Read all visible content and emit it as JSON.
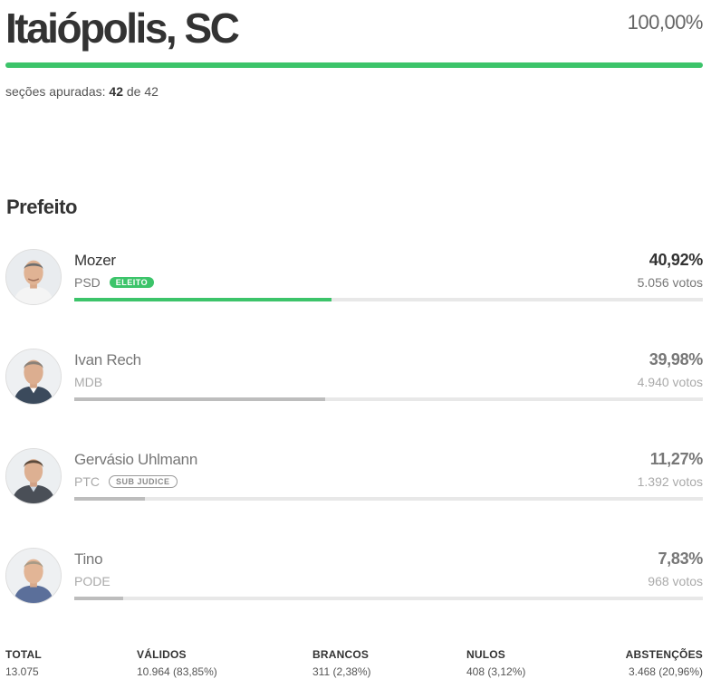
{
  "header": {
    "city": "Itaiópolis, SC",
    "percent_counted": "100,00%",
    "progress_fraction": 1.0
  },
  "sections": {
    "label": "seções apuradas:",
    "counted": "42",
    "separator": "de",
    "total": "42"
  },
  "office": {
    "title": "Prefeito"
  },
  "candidates": [
    {
      "name": "Mozer",
      "party": "PSD",
      "badge": "ELEITO",
      "percent": "40,92%",
      "votes": "5.056 votos",
      "share": 0.4092
    },
    {
      "name": "Ivan Rech",
      "party": "MDB",
      "badge": "",
      "percent": "39,98%",
      "votes": "4.940 votos",
      "share": 0.3998
    },
    {
      "name": "Gervásio Uhlmann",
      "party": "PTC",
      "badge": "SUB JUDICE",
      "percent": "11,27%",
      "votes": "1.392 votos",
      "share": 0.1127
    },
    {
      "name": "Tino",
      "party": "PODE",
      "badge": "",
      "percent": "7,83%",
      "votes": "968 votos",
      "share": 0.0783
    }
  ],
  "summary": {
    "total": {
      "label": "TOTAL",
      "value": "13.075"
    },
    "validos": {
      "label": "VÁLIDOS",
      "value": "10.964 (83,85%)"
    },
    "brancos": {
      "label": "BRANCOS",
      "value": "311 (2,38%)"
    },
    "nulos": {
      "label": "NULOS",
      "value": "408 (3,12%)"
    },
    "abstencoes": {
      "label": "ABSTENÇÕES",
      "value": "3.468 (20,96%)"
    }
  },
  "colors": {
    "accent_green": "#3cc46a",
    "bar_gray": "#bdbdbd",
    "track": "#e8e8e8"
  },
  "icons": {
    "avatar": "candidate-photo-icon"
  }
}
